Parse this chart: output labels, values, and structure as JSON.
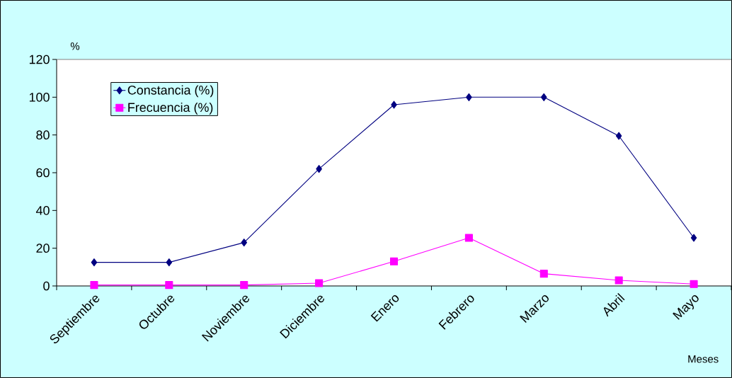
{
  "chart_data": {
    "type": "line",
    "ylabel": "%",
    "xlabel": "Meses",
    "categories": [
      "Septiembre",
      "Octubre",
      "Noviembre",
      "Diciembre",
      "Enero",
      "Febrero",
      "Marzo",
      "Abril",
      "Mayo"
    ],
    "series": [
      {
        "name": "Constancia (%)",
        "color": "#000080",
        "marker": "diamond",
        "values": [
          12.5,
          12.5,
          23,
          62,
          96,
          100,
          100,
          79.5,
          25.5
        ]
      },
      {
        "name": "Frecuencia (%)",
        "color": "#ff00ff",
        "marker": "square",
        "values": [
          0.5,
          0.5,
          0.5,
          1.5,
          13,
          25.5,
          6.5,
          3,
          1
        ]
      }
    ],
    "ylim": [
      0,
      120
    ],
    "yticks": [
      0,
      20,
      40,
      60,
      80,
      100,
      120
    ],
    "grid": false,
    "legend": "top left"
  }
}
